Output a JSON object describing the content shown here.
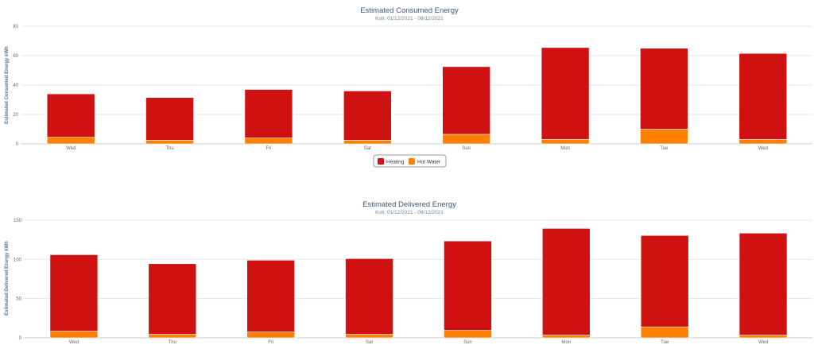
{
  "colors": {
    "heating": "#cf1111",
    "hot_water": "#ff8000",
    "grid": "#e6e6e6",
    "axis": "#cccccc"
  },
  "chart_data": [
    {
      "type": "bar",
      "stacked": true,
      "title": "Estimated Consumed Energy",
      "subtitle": "Koti: 01/12/2021 - 08/12/2021",
      "ylabel": "Estimated Consumed Energy kWh",
      "xlabel": "",
      "ylim": [
        0,
        80
      ],
      "yticks": [
        "0",
        "20",
        "40",
        "60",
        "80"
      ],
      "categories": [
        "Wed",
        "Thu",
        "Fri",
        "Sat",
        "Sun",
        "Mon",
        "Tue",
        "Wed"
      ],
      "series": [
        {
          "name": "Heating",
          "values": [
            29.5,
            29,
            33,
            33.5,
            46,
            62.5,
            55,
            58.5
          ]
        },
        {
          "name": "Hot Water",
          "values": [
            4.5,
            2.5,
            4,
            2.5,
            6.5,
            3,
            10,
            3
          ]
        }
      ],
      "legend": "bottom-center"
    },
    {
      "type": "bar",
      "stacked": true,
      "title": "Estimated Delivered Energy",
      "subtitle": "Koti: 01/12/2021 - 08/12/2021",
      "ylabel": "Estimated Delivered Energy kWh",
      "xlabel": "",
      "ylim": [
        0,
        150
      ],
      "yticks": [
        "0",
        "50",
        "100",
        "150"
      ],
      "categories": [
        "Wed",
        "Thu",
        "Fri",
        "Sat",
        "Sun",
        "Mon",
        "Tue",
        "Wed"
      ],
      "series": [
        {
          "name": "Heating",
          "values": [
            97.5,
            90,
            91.5,
            96.5,
            114,
            136,
            116.5,
            130
          ]
        },
        {
          "name": "Hot Water",
          "values": [
            8.5,
            4.5,
            7.5,
            4.5,
            9.5,
            3.5,
            14,
            3.5
          ]
        }
      ]
    }
  ]
}
